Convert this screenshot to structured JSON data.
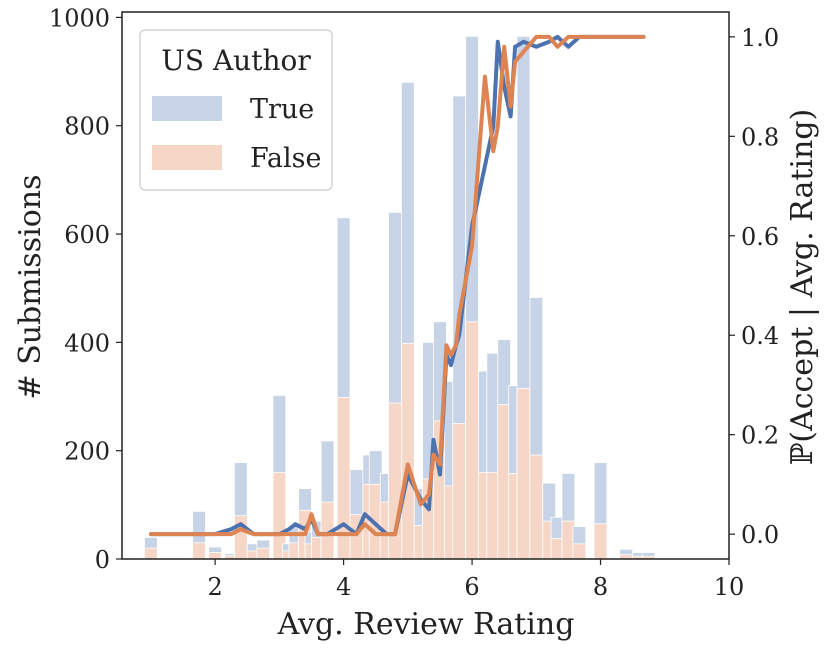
{
  "chart_data": {
    "type": "bar",
    "xlabel": "Avg. Review Rating",
    "ylabel": "# Submissions",
    "y2label": "ℙ(Accept | Avg. Rating)",
    "xlim": [
      0.55,
      10
    ],
    "ylim": [
      0,
      1010
    ],
    "y2lim": [
      -0.05,
      1.05
    ],
    "xticks": [
      2,
      4,
      6,
      8,
      10
    ],
    "yticks": [
      0,
      200,
      400,
      600,
      800,
      1000
    ],
    "y2ticks": [
      "0.0",
      "0.2",
      "0.4",
      "0.6",
      "0.8",
      "1.0"
    ],
    "grid": false,
    "legend": {
      "title": "US Author",
      "placement": "top-left",
      "entries": [
        {
          "label": "True",
          "color": "#c7d3e6"
        },
        {
          "label": "False",
          "color": "#f6d6c7"
        }
      ]
    },
    "colors": {
      "true_bar": "#c7d3e6",
      "false_bar": "#f6d6c7",
      "true_line": "#4c72b0",
      "false_line": "#dd8452"
    },
    "bar_width": 0.2,
    "histogram": {
      "x": [
        1.0,
        1.75,
        2.0,
        2.25,
        2.4,
        2.6,
        2.75,
        3.0,
        3.15,
        3.25,
        3.4,
        3.5,
        3.6,
        3.75,
        4.0,
        4.2,
        4.4,
        4.5,
        4.67,
        4.8,
        5.0,
        5.2,
        5.33,
        5.5,
        5.67,
        5.8,
        6.0,
        6.2,
        6.33,
        6.5,
        6.67,
        6.8,
        7.0,
        7.2,
        7.33,
        7.5,
        7.67,
        8.0,
        8.4,
        8.6,
        8.75
      ],
      "true_counts": [
        40,
        88,
        22,
        10,
        178,
        28,
        35,
        302,
        28,
        60,
        130,
        50,
        70,
        218,
        630,
        165,
        192,
        200,
        158,
        640,
        880,
        130,
        400,
        438,
        328,
        855,
        965,
        347,
        380,
        405,
        320,
        965,
        483,
        140,
        77,
        158,
        60,
        178,
        18,
        12,
        12
      ],
      "false_counts": [
        20,
        30,
        12,
        6,
        80,
        15,
        20,
        160,
        15,
        30,
        90,
        28,
        40,
        105,
        298,
        82,
        138,
        138,
        105,
        288,
        398,
        62,
        148,
        255,
        135,
        250,
        438,
        160,
        160,
        285,
        158,
        315,
        192,
        70,
        38,
        70,
        28,
        65,
        8,
        5,
        5
      ]
    },
    "series": [
      {
        "name": "True",
        "x": [
          1.0,
          1.75,
          2.0,
          2.25,
          2.4,
          2.6,
          2.75,
          3.0,
          3.15,
          3.25,
          3.4,
          3.5,
          3.6,
          3.75,
          4.0,
          4.2,
          4.33,
          4.5,
          4.67,
          4.8,
          5.0,
          5.2,
          5.33,
          5.4,
          5.5,
          5.6,
          5.67,
          5.75,
          5.8,
          6.0,
          6.2,
          6.33,
          6.4,
          6.5,
          6.6,
          6.67,
          6.8,
          7.0,
          7.2,
          7.33,
          7.5,
          7.67,
          8.0,
          8.67
        ],
        "y": [
          0.0,
          0.0,
          0.0,
          0.01,
          0.02,
          0.0,
          0.0,
          0.0,
          0.01,
          0.02,
          0.01,
          0.03,
          0.0,
          0.0,
          0.02,
          0.0,
          0.04,
          0.02,
          0.0,
          0.0,
          0.12,
          0.07,
          0.05,
          0.19,
          0.12,
          0.36,
          0.34,
          0.38,
          0.4,
          0.62,
          0.74,
          0.82,
          0.99,
          0.9,
          0.84,
          0.98,
          0.99,
          0.98,
          0.99,
          1.0,
          0.98,
          1.0,
          1.0,
          1.0
        ]
      },
      {
        "name": "False",
        "x": [
          1.0,
          1.75,
          2.0,
          2.25,
          2.4,
          2.6,
          2.75,
          3.0,
          3.15,
          3.25,
          3.4,
          3.5,
          3.6,
          3.75,
          4.0,
          4.2,
          4.33,
          4.5,
          4.67,
          4.8,
          5.0,
          5.2,
          5.33,
          5.4,
          5.5,
          5.6,
          5.67,
          5.75,
          5.8,
          6.0,
          6.2,
          6.33,
          6.4,
          6.5,
          6.6,
          6.67,
          6.8,
          7.0,
          7.2,
          7.33,
          7.5,
          7.67,
          8.0,
          8.67
        ],
        "y": [
          0.0,
          0.0,
          0.0,
          0.0,
          0.01,
          0.0,
          0.0,
          0.0,
          0.0,
          0.0,
          0.0,
          0.04,
          0.0,
          0.0,
          0.0,
          0.0,
          0.02,
          0.0,
          0.0,
          0.0,
          0.14,
          0.06,
          0.08,
          0.16,
          0.14,
          0.38,
          0.36,
          0.38,
          0.44,
          0.58,
          0.92,
          0.77,
          0.82,
          0.98,
          0.86,
          0.95,
          0.97,
          1.0,
          1.0,
          0.98,
          1.0,
          1.0,
          1.0,
          1.0
        ]
      }
    ]
  }
}
